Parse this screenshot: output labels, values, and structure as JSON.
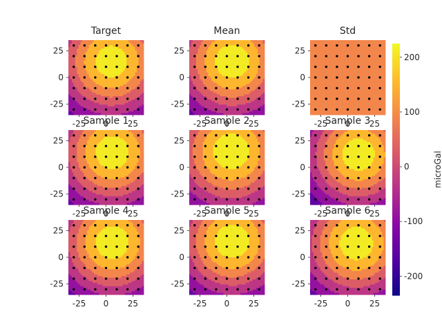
{
  "chart_data": {
    "type": "heatmap",
    "plot_kind": "filled-contour",
    "panels": [
      {
        "title": "Target",
        "kind": "field",
        "center": [
          5,
          15
        ],
        "peak": 215,
        "low": -225,
        "spread": 1.0
      },
      {
        "title": "Mean",
        "kind": "field",
        "center": [
          5,
          15
        ],
        "peak": 222,
        "low": -230,
        "spread": 1.0
      },
      {
        "title": "Std",
        "kind": "flat",
        "value": 95
      },
      {
        "title": "Sample 1",
        "kind": "field",
        "center": [
          6,
          14
        ],
        "peak": 220,
        "low": -230,
        "spread": 1.0
      },
      {
        "title": "Sample 2",
        "kind": "field",
        "center": [
          4,
          15
        ],
        "peak": 222,
        "low": -225,
        "spread": 1.05
      },
      {
        "title": "Sample 3",
        "kind": "field",
        "center": [
          10,
          12
        ],
        "peak": 222,
        "low": -230,
        "spread": 0.95
      },
      {
        "title": "Sample 4",
        "kind": "field",
        "center": [
          6,
          14
        ],
        "peak": 220,
        "low": -232,
        "spread": 1.0
      },
      {
        "title": "Sample 5",
        "kind": "field",
        "center": [
          5,
          15
        ],
        "peak": 222,
        "low": -232,
        "spread": 1.0
      },
      {
        "title": "Sample 6",
        "kind": "field",
        "center": [
          8,
          13
        ],
        "peak": 220,
        "low": -230,
        "spread": 1.0
      }
    ],
    "x_range": [
      -35,
      35
    ],
    "y_range": [
      -35,
      35
    ],
    "x_ticks": [
      -25,
      0,
      25
    ],
    "y_ticks": [
      25,
      0,
      -25
    ],
    "station_positions": [
      -30,
      -20,
      -10,
      0,
      10,
      20,
      30
    ],
    "colorbar": {
      "label": "microGal",
      "range": [
        -235,
        225
      ],
      "ticks": [
        200,
        100,
        0,
        -100,
        -200
      ],
      "colormap": "plasma"
    },
    "contour_levels": [
      -240,
      -180,
      -120,
      -60,
      0,
      60,
      120,
      180,
      240
    ],
    "grid": false
  },
  "colors": {
    "point": "#000000",
    "text": "#262626",
    "plasma": [
      "#0d0887",
      "#5302a3",
      "#8b0aa5",
      "#b83289",
      "#db5c68",
      "#f48849",
      "#febd2a",
      "#f0f921"
    ]
  }
}
